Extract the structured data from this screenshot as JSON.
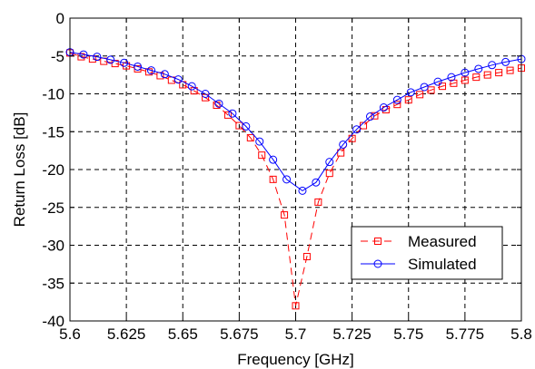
{
  "chart_data": {
    "type": "line",
    "xlabel": "Frequency [GHz]",
    "ylabel": "Return Loss [dB]",
    "xlim": [
      5.6,
      5.8
    ],
    "ylim": [
      -40,
      0
    ],
    "grid": true,
    "grid_style": "dashed",
    "legend_position": "lower-right",
    "x_ticks": [
      5.6,
      5.625,
      5.65,
      5.675,
      5.7,
      5.725,
      5.75,
      5.775,
      5.8
    ],
    "x_tick_labels": [
      "5.6",
      "5.625",
      "5.65",
      "5.675",
      "5.7",
      "5.725",
      "5.75",
      "5.775",
      "5.8"
    ],
    "y_ticks": [
      0,
      -5,
      -10,
      -15,
      -20,
      -25,
      -30,
      -35,
      -40
    ],
    "y_tick_labels": [
      "0",
      "-5",
      "-10",
      "-15",
      "-20",
      "-25",
      "-30",
      "-35",
      "-40"
    ],
    "series": [
      {
        "name": "Measured",
        "color": "#ff0000",
        "line_style": "dashed",
        "marker": "square",
        "x": [
          5.6,
          5.605,
          5.61,
          5.615,
          5.62,
          5.625,
          5.63,
          5.635,
          5.64,
          5.645,
          5.65,
          5.655,
          5.66,
          5.665,
          5.67,
          5.675,
          5.68,
          5.685,
          5.69,
          5.695,
          5.7,
          5.705,
          5.71,
          5.715,
          5.72,
          5.725,
          5.73,
          5.735,
          5.74,
          5.745,
          5.75,
          5.755,
          5.76,
          5.765,
          5.77,
          5.775,
          5.78,
          5.785,
          5.79,
          5.795,
          5.8
        ],
        "values": [
          -4.6,
          -5.1,
          -5.4,
          -5.7,
          -6.0,
          -6.3,
          -6.7,
          -7.1,
          -7.6,
          -8.2,
          -8.8,
          -9.6,
          -10.5,
          -11.5,
          -12.8,
          -14.2,
          -15.8,
          -18.1,
          -21.3,
          -26.0,
          -38.0,
          -31.5,
          -24.3,
          -20.5,
          -17.8,
          -15.9,
          -14.2,
          -12.9,
          -12.1,
          -11.4,
          -10.8,
          -10.1,
          -9.5,
          -9.0,
          -8.6,
          -8.2,
          -7.8,
          -7.5,
          -7.2,
          -6.9,
          -6.6
        ]
      },
      {
        "name": "Simulated",
        "color": "#0000ff",
        "line_style": "solid",
        "marker": "circle",
        "x": [
          5.6,
          5.606,
          5.612,
          5.618,
          5.624,
          5.63,
          5.636,
          5.642,
          5.648,
          5.654,
          5.66,
          5.666,
          5.672,
          5.678,
          5.684,
          5.69,
          5.696,
          5.703,
          5.709,
          5.715,
          5.721,
          5.727,
          5.733,
          5.739,
          5.745,
          5.751,
          5.757,
          5.763,
          5.769,
          5.775,
          5.781,
          5.787,
          5.793,
          5.8
        ],
        "values": [
          -4.5,
          -4.8,
          -5.1,
          -5.5,
          -5.9,
          -6.4,
          -6.9,
          -7.4,
          -8.1,
          -9.0,
          -10.0,
          -11.3,
          -12.6,
          -14.3,
          -16.3,
          -18.7,
          -21.3,
          -22.8,
          -21.7,
          -19.0,
          -16.7,
          -14.7,
          -13.0,
          -11.8,
          -10.8,
          -9.8,
          -9.1,
          -8.4,
          -7.8,
          -7.2,
          -6.7,
          -6.2,
          -5.8,
          -5.4
        ]
      }
    ]
  }
}
